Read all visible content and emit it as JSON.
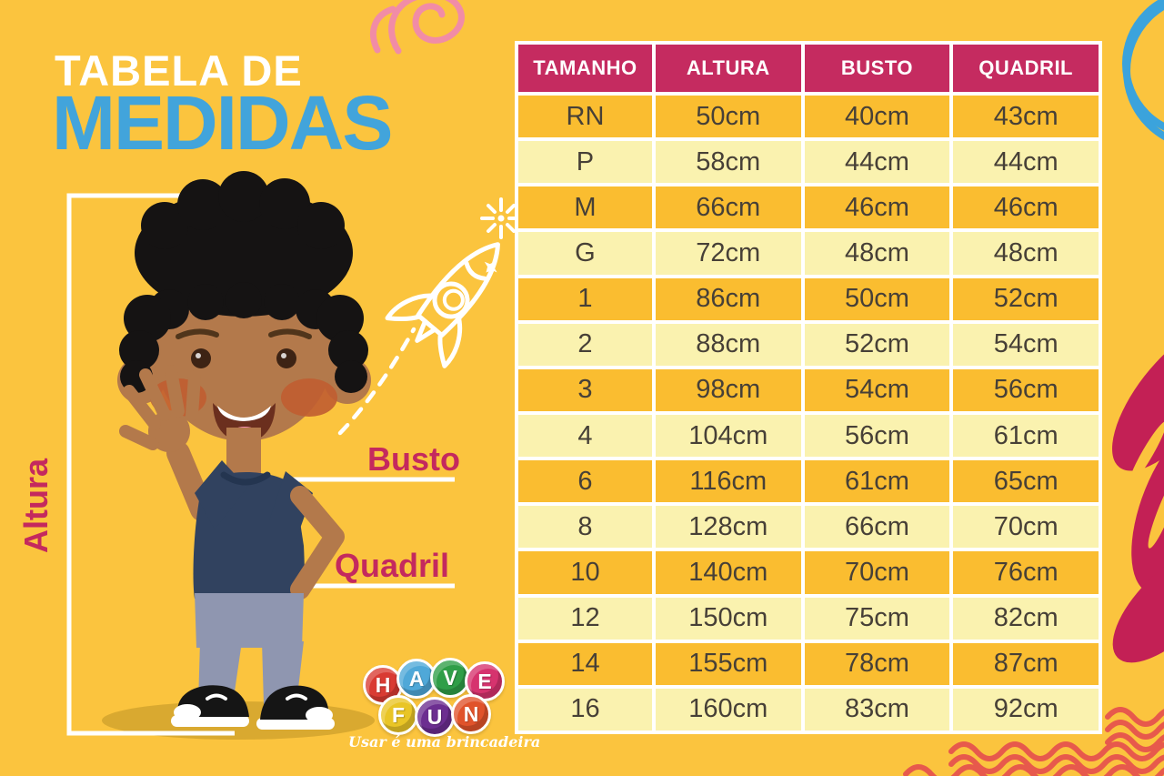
{
  "title": {
    "line1": "TABELA DE",
    "line2": "MEDIDAS"
  },
  "figure_labels": {
    "altura": "Altura",
    "busto": "Busto",
    "quadril": "Quadril"
  },
  "size_table": {
    "columns": [
      "TAMANHO",
      "ALTURA",
      "BUSTO",
      "QUADRIL"
    ],
    "rows": [
      [
        "RN",
        "50cm",
        "40cm",
        "43cm"
      ],
      [
        "P",
        "58cm",
        "44cm",
        "44cm"
      ],
      [
        "M",
        "66cm",
        "46cm",
        "46cm"
      ],
      [
        "G",
        "72cm",
        "48cm",
        "48cm"
      ],
      [
        "1",
        "86cm",
        "50cm",
        "52cm"
      ],
      [
        "2",
        "88cm",
        "52cm",
        "54cm"
      ],
      [
        "3",
        "98cm",
        "54cm",
        "56cm"
      ],
      [
        "4",
        "104cm",
        "56cm",
        "61cm"
      ],
      [
        "6",
        "116cm",
        "61cm",
        "65cm"
      ],
      [
        "8",
        "128cm",
        "66cm",
        "70cm"
      ],
      [
        "10",
        "140cm",
        "70cm",
        "76cm"
      ],
      [
        "12",
        "150cm",
        "75cm",
        "82cm"
      ],
      [
        "14",
        "155cm",
        "78cm",
        "87cm"
      ],
      [
        "16",
        "160cm",
        "83cm",
        "92cm"
      ]
    ]
  },
  "chart_data": {
    "type": "table",
    "title": "Tabela de Medidas",
    "columns": [
      "TAMANHO",
      "ALTURA",
      "BUSTO",
      "QUADRIL"
    ],
    "categories": [
      "RN",
      "P",
      "M",
      "G",
      "1",
      "2",
      "3",
      "4",
      "6",
      "8",
      "10",
      "12",
      "14",
      "16"
    ],
    "series": [
      {
        "name": "ALTURA (cm)",
        "values": [
          50,
          58,
          66,
          72,
          86,
          88,
          98,
          104,
          116,
          128,
          140,
          150,
          155,
          160
        ]
      },
      {
        "name": "BUSTO (cm)",
        "values": [
          40,
          44,
          46,
          48,
          50,
          52,
          54,
          56,
          61,
          66,
          70,
          75,
          78,
          83
        ]
      },
      {
        "name": "QUADRIL (cm)",
        "values": [
          43,
          44,
          46,
          48,
          52,
          54,
          56,
          61,
          65,
          70,
          76,
          82,
          87,
          92
        ]
      }
    ],
    "layout": "header row pink, data rows alternate orange/cream, white gridlines"
  },
  "logo": {
    "brand": "HAVE FUN",
    "balls": [
      {
        "letter": "H",
        "color": "#D93B33"
      },
      {
        "letter": "A",
        "color": "#4FA8D8"
      },
      {
        "letter": "V",
        "color": "#2F9E48"
      },
      {
        "letter": "E",
        "color": "#D6336E"
      },
      {
        "letter": "F",
        "color": "#E9C526"
      },
      {
        "letter": "U",
        "color": "#6C2E90"
      },
      {
        "letter": "N",
        "color": "#E0532B"
      }
    ],
    "tagline": "Usar é uma brincadeira"
  },
  "colors": {
    "background": "#FBC43E",
    "table_header": "#C52B60",
    "row_orange": "#FABD30",
    "row_cream": "#FAF2AF",
    "title_blue": "#42A4DB",
    "label_pink": "#C4295E",
    "wave_red": "#E7594C",
    "cell_text": "#474037"
  }
}
